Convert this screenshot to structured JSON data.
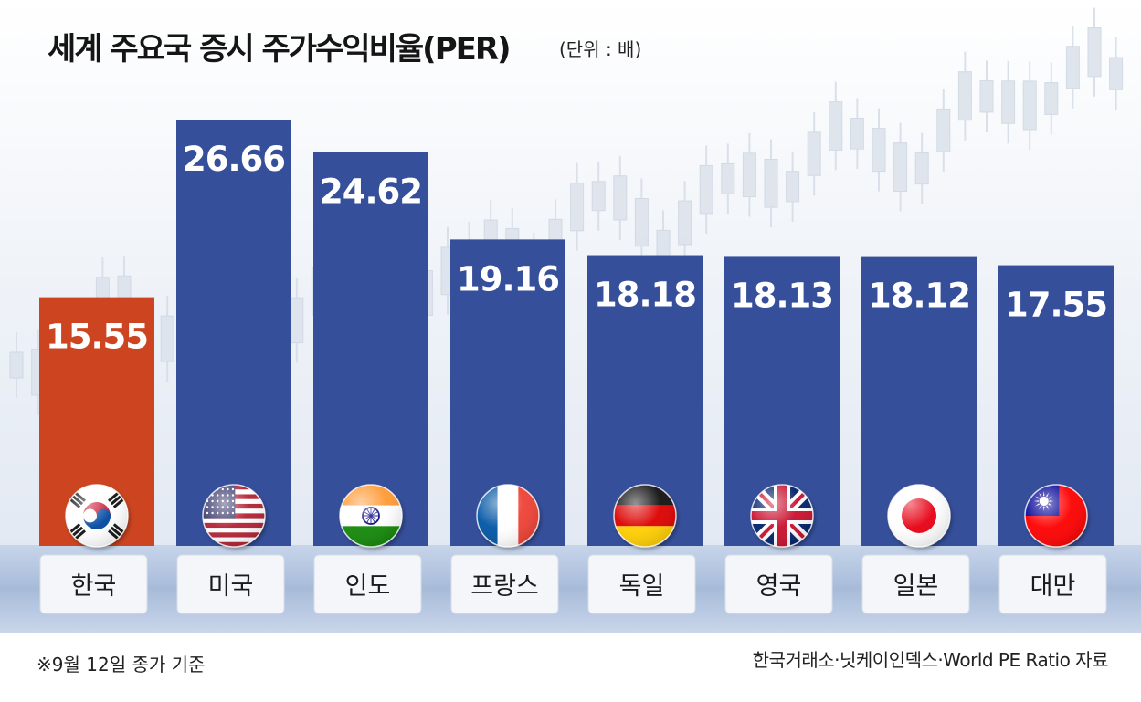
{
  "title": "세계 주요국 증시 주가수익비율(PER)",
  "unit": "(단위 : 배)",
  "note": "※9월 12일 종가 기준",
  "source": "한국거래소·닛케이인덱스·World PE Ratio 자료",
  "colors": {
    "highlight": "#cc4520",
    "bar": "#364f9a",
    "band": "#a7bbd9",
    "label_box": "#f4f6fa",
    "value_text": "#ffffff"
  },
  "chart_data": {
    "type": "bar",
    "categories": [
      "한국",
      "미국",
      "인도",
      "프랑스",
      "독일",
      "영국",
      "일본",
      "대만"
    ],
    "values": [
      15.55,
      26.66,
      24.62,
      19.16,
      18.18,
      18.13,
      18.12,
      17.55
    ],
    "value_labels": [
      "15.55",
      "26.66",
      "24.62",
      "19.16",
      "18.18",
      "18.13",
      "18.12",
      "17.55"
    ],
    "flag_icons": [
      "flag-korea-icon",
      "flag-usa-icon",
      "flag-india-icon",
      "flag-france-icon",
      "flag-germany-icon",
      "flag-uk-icon",
      "flag-japan-icon",
      "flag-taiwan-icon"
    ],
    "highlight_category": "한국",
    "title": "세계 주요국 증시 주가수익비율(PER)",
    "xlabel": "",
    "ylabel": "",
    "legend": "none",
    "grid": false
  }
}
